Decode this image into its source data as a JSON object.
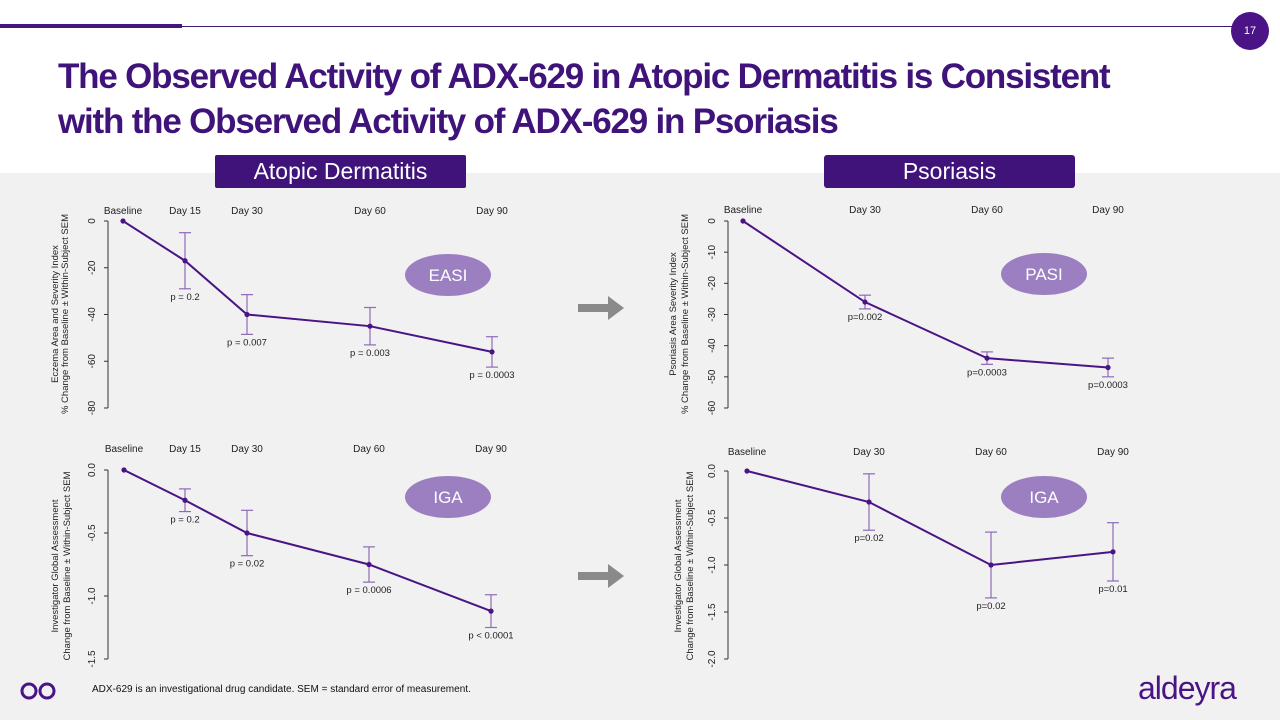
{
  "page_number": "17",
  "title_line1": "The Observed Activity of ADX-629 in Atopic Dermatitis is Consistent",
  "title_line2": "with the Observed Activity of ADX-629 in Psoriasis",
  "sections": {
    "left": "Atopic Dermatitis",
    "right": "Psoriasis"
  },
  "footnote": "ADX-629 is an investigational drug candidate. SEM = standard error of measurement.",
  "brand": "aldeyra",
  "colors": {
    "primary": "#3f137a",
    "line": "#4a1486",
    "badge": "#9b7fc0",
    "error_bar": "#8e6ab8",
    "arrow": "#8a8a8a"
  },
  "chart_data": [
    {
      "type": "line",
      "id": "easi",
      "badge": "EASI",
      "ylabel": [
        "Eczema Area and Severity Index",
        "% Change from Baseline ± Within-Subject SEM"
      ],
      "ylim": [
        -80,
        0
      ],
      "yticks": [
        0,
        -20,
        -40,
        -60,
        -80
      ],
      "categories": [
        "Baseline",
        "Day 15",
        "Day 30",
        "Day 60",
        "Day 90"
      ],
      "x": [
        0,
        15,
        30,
        60,
        90
      ],
      "values": [
        0,
        -17,
        -40,
        -45,
        -56
      ],
      "errors": [
        0,
        12,
        8.5,
        8,
        6.5
      ],
      "pvalues": [
        "",
        "p = 0.2",
        "p = 0.007",
        "p = 0.003",
        "p = 0.0003"
      ]
    },
    {
      "type": "line",
      "id": "pasi",
      "badge": "PASI",
      "ylabel": [
        "Psoriasis Area Severity Index",
        "% Change from Baseline ± Within-Subject SEM"
      ],
      "ylim": [
        -60,
        0
      ],
      "yticks": [
        0,
        -10,
        -20,
        -30,
        -40,
        -50,
        -60
      ],
      "categories": [
        "Baseline",
        "Day 30",
        "Day 60",
        "Day 90"
      ],
      "x": [
        0,
        30,
        60,
        90
      ],
      "values": [
        0,
        -26,
        -44,
        -47
      ],
      "errors": [
        0,
        2.2,
        2,
        3
      ],
      "pvalues": [
        "",
        "p=0.002",
        "p=0.0003",
        "p=0.0003"
      ]
    },
    {
      "type": "line",
      "id": "iga-ad",
      "badge": "IGA",
      "ylabel": [
        "Investigator Global Assessment",
        "Change from Baseline ± Within-Subject SEM"
      ],
      "ylim": [
        -1.5,
        0
      ],
      "yticks": [
        0.0,
        -0.5,
        -1.0,
        -1.5
      ],
      "ytick_labels": [
        "0.0",
        "-0.5",
        "-1.0",
        "-1.5"
      ],
      "categories": [
        "Baseline",
        "Day 15",
        "Day 30",
        "Day 60",
        "Day 90"
      ],
      "x": [
        0,
        15,
        30,
        60,
        90
      ],
      "values": [
        0,
        -0.24,
        -0.5,
        -0.75,
        -1.12
      ],
      "errors": [
        0,
        0.09,
        0.18,
        0.14,
        0.13
      ],
      "pvalues": [
        "",
        "p = 0.2",
        "p = 0.02",
        "p = 0.0006",
        "p < 0.0001"
      ]
    },
    {
      "type": "line",
      "id": "iga-pso",
      "badge": "IGA",
      "ylabel": [
        "Investigator Global Assessment",
        "Change from Baseline ± Within-Subject SEM"
      ],
      "ylim": [
        -2.0,
        0
      ],
      "yticks": [
        0.0,
        -0.5,
        -1.0,
        -1.5,
        -2.0
      ],
      "ytick_labels": [
        "0.0",
        "-0.5",
        "-1.0",
        "-1.5",
        "-2.0"
      ],
      "categories": [
        "Baseline",
        "Day 30",
        "Day 60",
        "Day 90"
      ],
      "x": [
        0,
        30,
        60,
        90
      ],
      "values": [
        0,
        -0.33,
        -1.0,
        -0.86
      ],
      "errors": [
        0,
        0.3,
        0.35,
        0.31
      ],
      "pvalues": [
        "",
        "p=0.02",
        "p=0.02",
        "p=0.01"
      ]
    }
  ]
}
